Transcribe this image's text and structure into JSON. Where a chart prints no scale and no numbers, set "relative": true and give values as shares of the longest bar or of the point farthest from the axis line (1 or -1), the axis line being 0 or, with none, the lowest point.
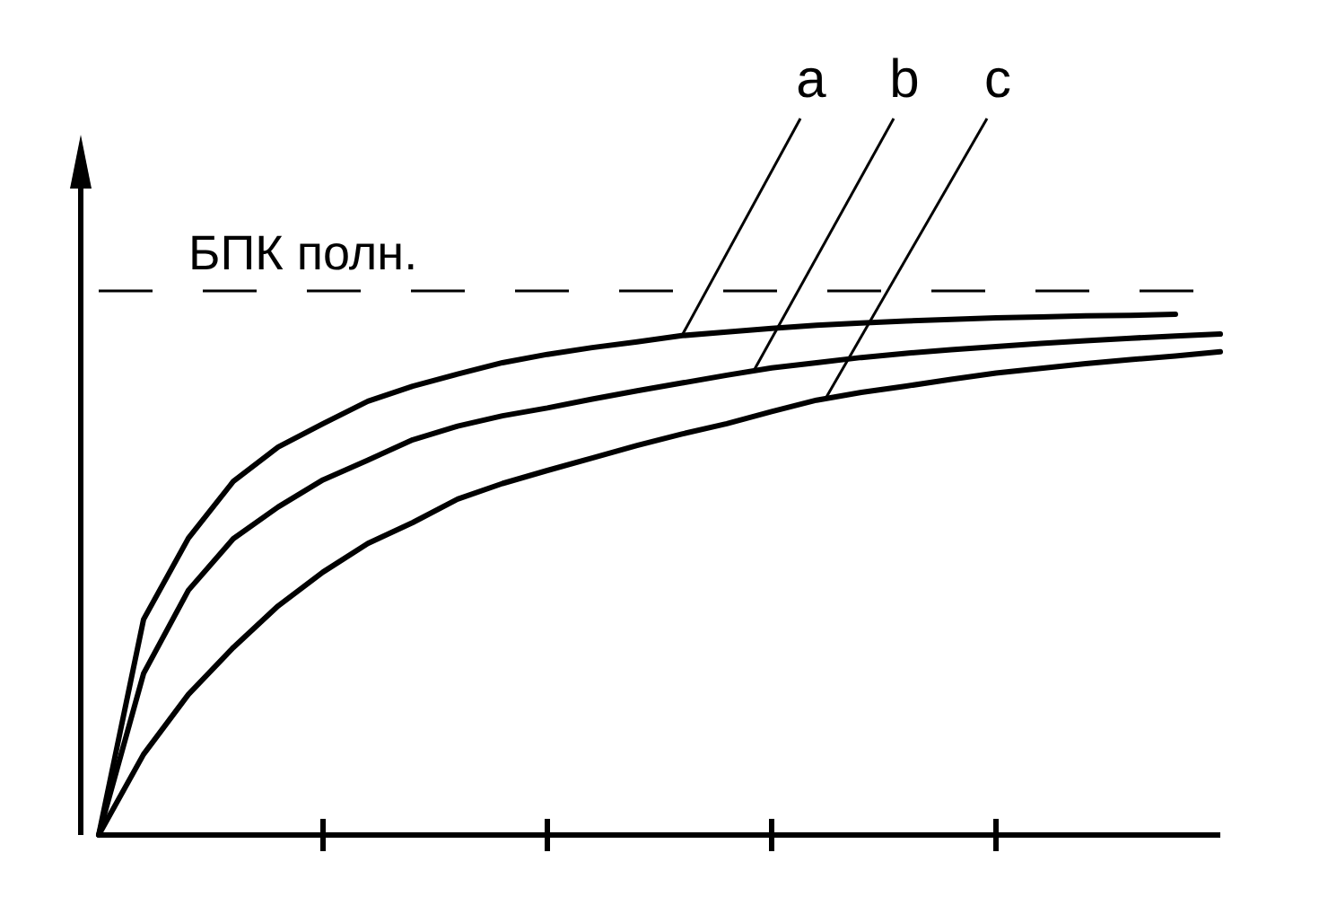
{
  "chart_data": {
    "type": "line",
    "relative": true,
    "categories": [
      null,
      null,
      null,
      null,
      null,
      null,
      null,
      null,
      null,
      null,
      null,
      null,
      null,
      null,
      null,
      null,
      null,
      null,
      null,
      null,
      null,
      null,
      null,
      null,
      null,
      null
    ],
    "grid": false,
    "legend": false,
    "marker": "none",
    "line_style": "solid",
    "series": [
      {
        "name": "a",
        "color": "#000000",
        "values": [
          0,
          0.414,
          0.57,
          0.679,
          0.745,
          0.79,
          0.833,
          0.862,
          0.885,
          0.907,
          0.923,
          0.936,
          0.947,
          0.959,
          0.966,
          0.973,
          0.979,
          0.983,
          0.987,
          0.99,
          0.993,
          0.995,
          0.997,
          0.998,
          1,
          null
        ]
      },
      {
        "name": "b",
        "color": "#000000",
        "values": [
          0,
          0.31,
          0.47,
          0.569,
          0.63,
          0.682,
          0.72,
          0.759,
          0.785,
          0.805,
          0.82,
          0.837,
          0.853,
          0.868,
          0.883,
          0.897,
          0.907,
          0.917,
          0.925,
          0.932,
          0.938,
          0.944,
          0.949,
          0.954,
          0.958,
          0.962
        ]
      },
      {
        "name": "c",
        "color": "#000000",
        "values": [
          0,
          0.155,
          0.27,
          0.36,
          0.44,
          0.505,
          0.56,
          0.6,
          0.645,
          0.675,
          0.7,
          0.724,
          0.748,
          0.77,
          0.79,
          0.813,
          0.835,
          0.85,
          0.862,
          0.875,
          0.887,
          0.896,
          0.905,
          0.913,
          0.92,
          0.928
        ]
      }
    ],
    "ref_lines": [
      {
        "axis": "y",
        "value": 1.045,
        "label": "БПК полн.",
        "line_style": "dashed",
        "color": "#000000"
      }
    ]
  }
}
